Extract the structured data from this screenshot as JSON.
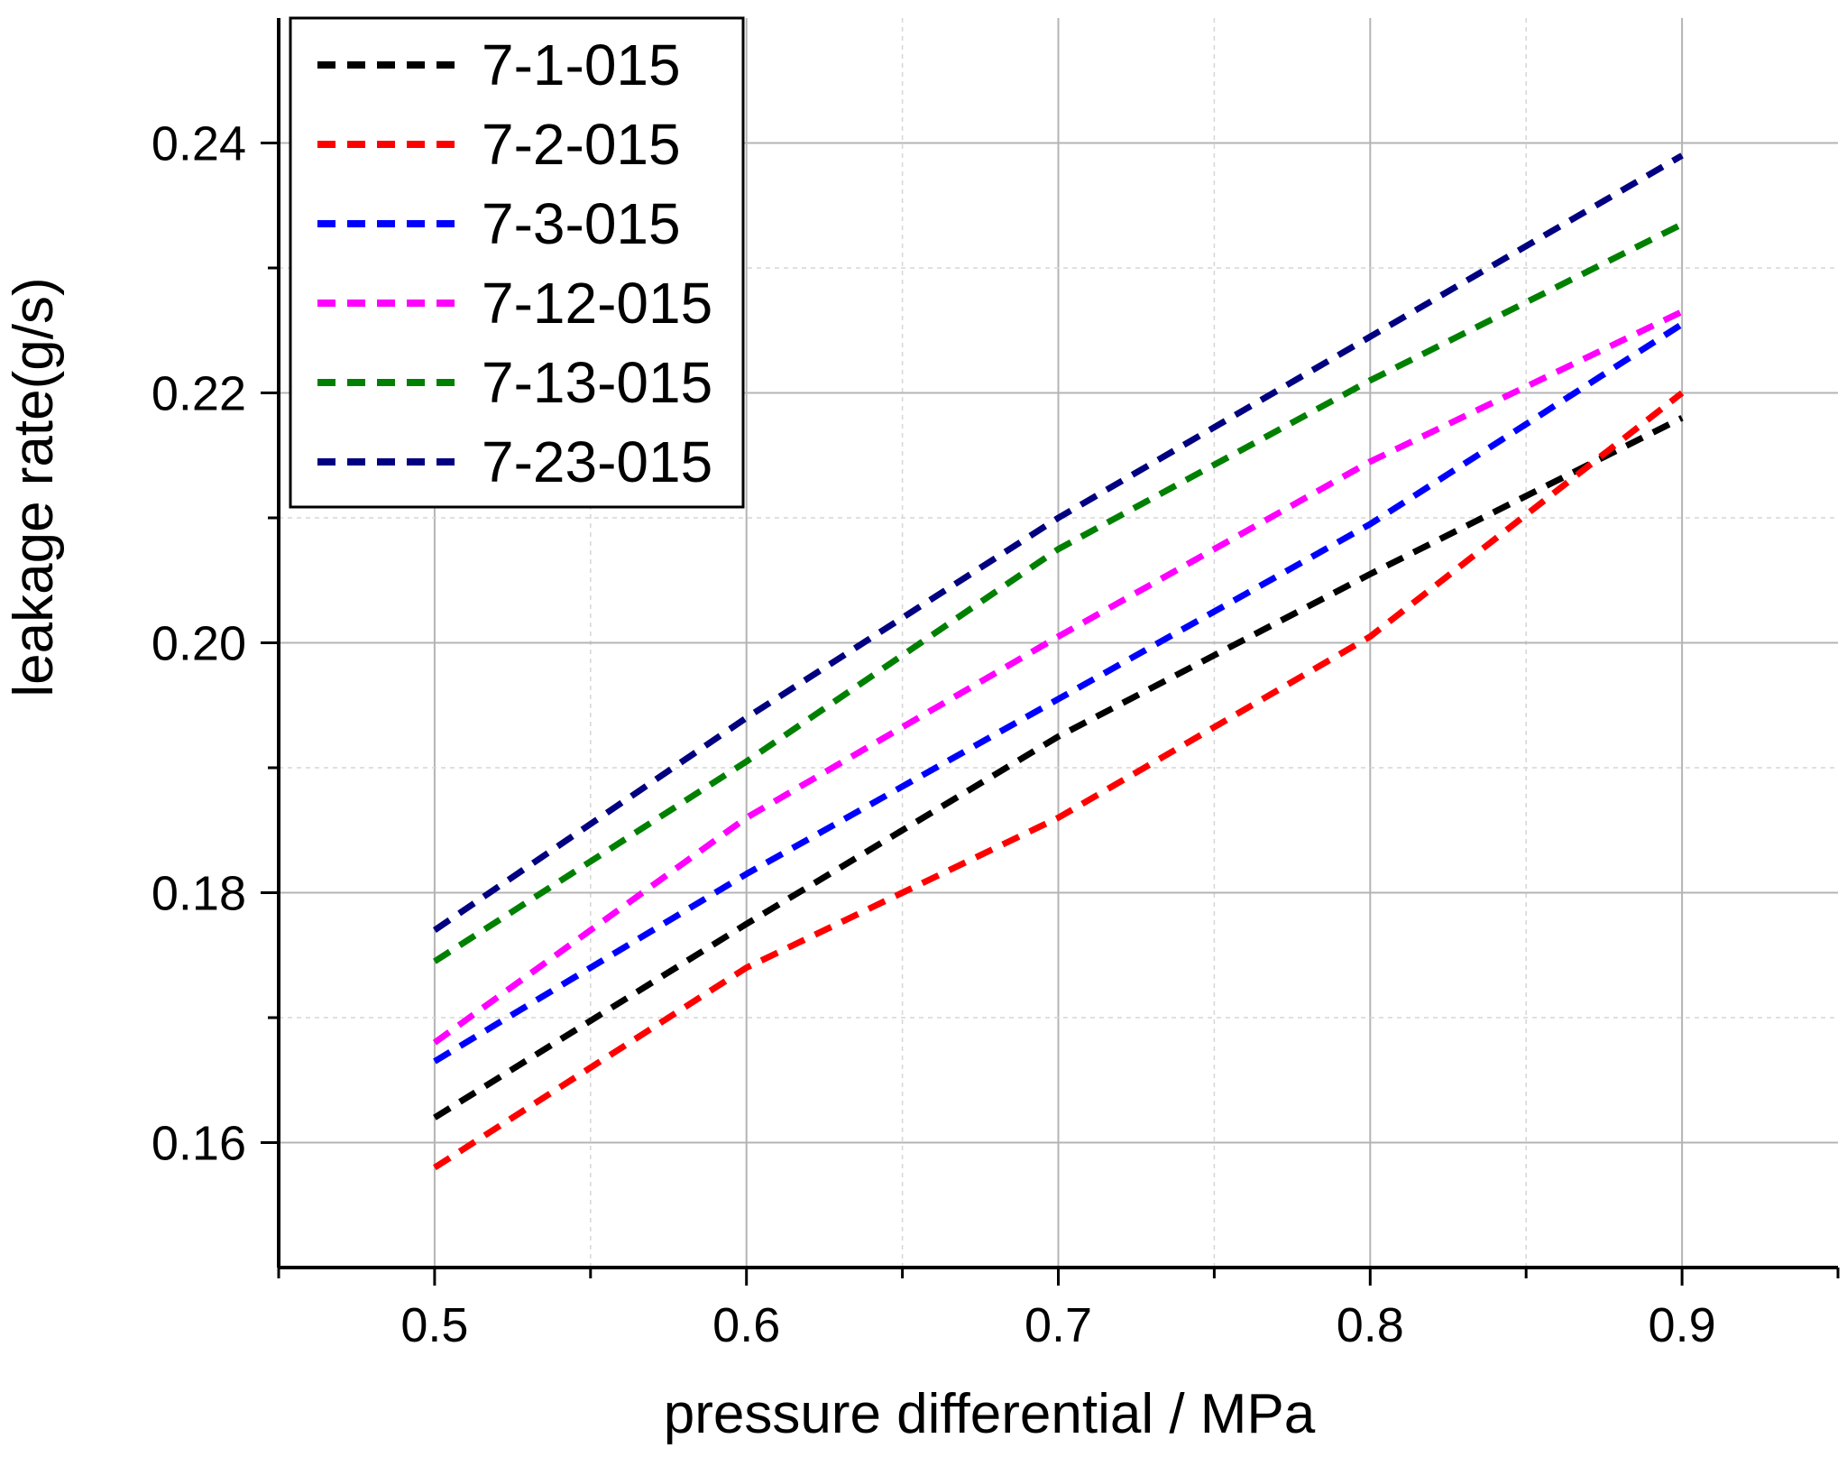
{
  "chart_data": {
    "type": "line",
    "title": "",
    "xlabel": "pressure differential / MPa",
    "ylabel": "leakage rate(g/s)",
    "xlim": [
      0.45,
      0.95
    ],
    "ylim": [
      0.15,
      0.25
    ],
    "x_ticks": [
      0.5,
      0.6,
      0.7,
      0.8,
      0.9
    ],
    "x_tick_labels": [
      "0.5",
      "0.6",
      "0.7",
      "0.8",
      "0.9"
    ],
    "x_minor_ticks": [
      0.45,
      0.55,
      0.65,
      0.75,
      0.85,
      0.95
    ],
    "y_ticks": [
      0.16,
      0.18,
      0.2,
      0.22,
      0.24
    ],
    "y_tick_labels": [
      "0.16",
      "0.18",
      "0.20",
      "0.22",
      "0.24"
    ],
    "y_minor_ticks": [
      0.17,
      0.19,
      0.21,
      0.23
    ],
    "grid": true,
    "line_style": "dashed",
    "legend_position": "top-left",
    "x": [
      0.5,
      0.6,
      0.7,
      0.8,
      0.9
    ],
    "series": [
      {
        "name": "7-1-015",
        "color": "#000000",
        "values": [
          0.162,
          0.1775,
          0.1925,
          0.2055,
          0.218
        ]
      },
      {
        "name": "7-2-015",
        "color": "#ff0000",
        "values": [
          0.158,
          0.174,
          0.186,
          0.2005,
          0.22
        ]
      },
      {
        "name": "7-3-015",
        "color": "#0000ff",
        "values": [
          0.1665,
          0.1815,
          0.1955,
          0.2095,
          0.2255
        ]
      },
      {
        "name": "7-12-015",
        "color": "#ff00ff",
        "values": [
          0.168,
          0.186,
          0.2005,
          0.2145,
          0.2265
        ]
      },
      {
        "name": "7-13-015",
        "color": "#008000",
        "values": [
          0.1745,
          0.1905,
          0.2075,
          0.221,
          0.2335
        ]
      },
      {
        "name": "7-23-015",
        "color": "#000080",
        "values": [
          0.177,
          0.194,
          0.21,
          0.2245,
          0.239
        ]
      }
    ]
  }
}
